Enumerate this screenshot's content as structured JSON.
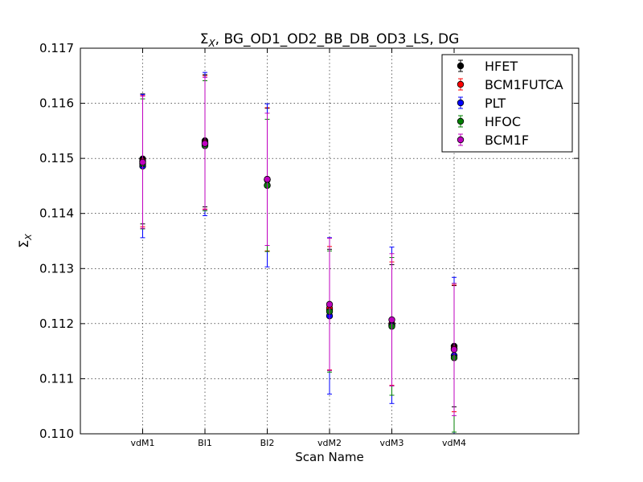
{
  "chart_data": {
    "type": "scatter",
    "title": "Σ_X, BG_OD1_OD2_BB_DB_OD3_LS, DG",
    "title_symbol": "Σ",
    "title_subscript": "X",
    "title_rest": ", BG_OD1_OD2_BB_DB_OD3_LS, DG",
    "xlabel": "Scan Name",
    "ylabel_symbol": "Σ",
    "ylabel_subscript": "X",
    "categories": [
      "vdM1",
      "BI1",
      "BI2",
      "vdM2",
      "vdM3",
      "vdM4"
    ],
    "ylim": [
      0.11,
      0.117
    ],
    "yticks": [
      "0.110",
      "0.111",
      "0.112",
      "0.113",
      "0.114",
      "0.115",
      "0.116",
      "0.117"
    ],
    "grid": true,
    "legend_position": "top-right",
    "series": [
      {
        "name": "HFET",
        "color": "#000000",
        "values": [
          0.11499,
          0.11532,
          0.11461,
          0.11225,
          0.11197,
          0.11159
        ],
        "errors": [
          0.00118,
          0.0012,
          0.0013,
          0.0011,
          0.0011,
          0.0011
        ]
      },
      {
        "name": "BCM1FUTCA",
        "color": "#ff0000",
        "values": [
          0.11495,
          0.11529,
          0.11462,
          0.11228,
          0.112,
          0.11155
        ],
        "errors": [
          0.00119,
          0.00121,
          0.0013,
          0.00112,
          0.00112,
          0.00115
        ]
      },
      {
        "name": "PLT",
        "color": "#0000ff",
        "values": [
          0.11486,
          0.11526,
          0.11451,
          0.11214,
          0.11197,
          0.11142
        ],
        "errors": [
          0.0013,
          0.0013,
          0.00148,
          0.00142,
          0.00142,
          0.00142
        ]
      },
      {
        "name": "HFOC",
        "color": "#008000",
        "values": [
          0.1149,
          0.11523,
          0.11451,
          0.11222,
          0.11195,
          0.11138
        ],
        "errors": [
          0.00118,
          0.00118,
          0.0012,
          0.0011,
          0.00125,
          0.00135
        ]
      },
      {
        "name": "BCM1F",
        "color": "#bf00bf",
        "values": [
          0.11493,
          0.11527,
          0.11462,
          0.11235,
          0.11207,
          0.11153
        ],
        "errors": [
          0.0012,
          0.0012,
          0.0012,
          0.0012,
          0.0012,
          0.0012
        ]
      }
    ]
  }
}
